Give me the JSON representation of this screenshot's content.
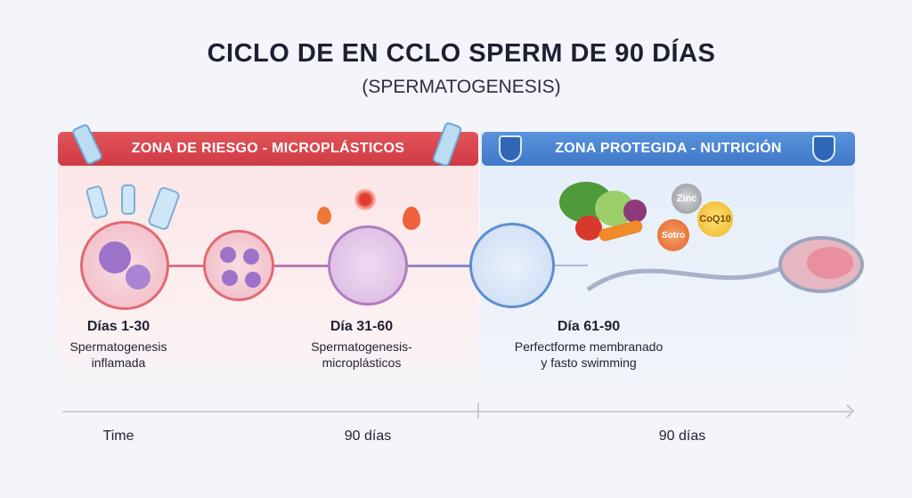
{
  "title": "CICLO DE EN CCLO SPERM DE 90 DÍAS",
  "subtitle": "(SPERMATOGENESIS)",
  "zones": {
    "risk": {
      "label": "ZONA DE RIESGO - MICROPLÁSTICOS",
      "color": "#d6434b"
    },
    "protected": {
      "label": "ZONA PROTEGIDA - NUTRICIÓN",
      "color": "#4a84d0"
    }
  },
  "supplements": [
    "Zinc",
    "Sotro",
    "CoQ10"
  ],
  "stages": [
    {
      "heading": "Días 1-30",
      "line1": "Spermatogenesis",
      "line2": "inflamada"
    },
    {
      "heading": "Día  31-60",
      "line1": "Spermatogenesis-",
      "line2": "microplásticos"
    },
    {
      "heading": "Día 61-90",
      "line1": "Perfectforme membranado",
      "line2": "y fasto swimming"
    }
  ],
  "timeline": {
    "start": "Time",
    "mid": "90 días",
    "end": "90 días"
  }
}
